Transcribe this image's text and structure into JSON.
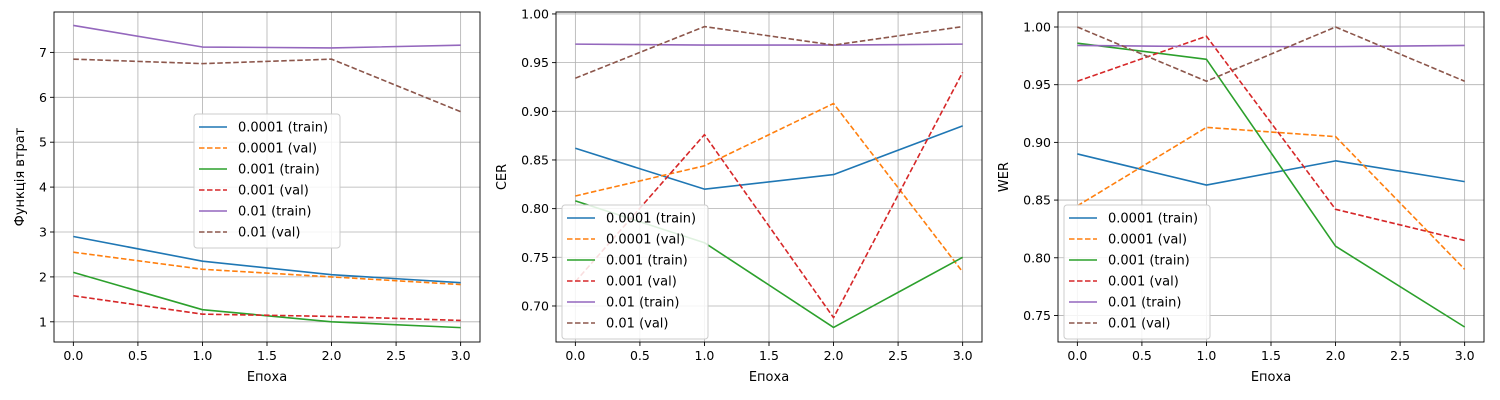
{
  "series_styles": [
    {
      "color": "#1f77b4",
      "dash": "solid"
    },
    {
      "color": "#ff7f0e",
      "dash": "dashed"
    },
    {
      "color": "#2ca02c",
      "dash": "solid"
    },
    {
      "color": "#d62728",
      "dash": "dashed"
    },
    {
      "color": "#9467bd",
      "dash": "solid"
    },
    {
      "color": "#8c564b",
      "dash": "dashed"
    }
  ],
  "chart_data": [
    {
      "type": "line",
      "xlabel": "Епоха",
      "ylabel": "Функція втрат",
      "x": [
        0,
        1,
        2,
        3
      ],
      "xlim": [
        -0.15,
        3.15
      ],
      "ylim": [
        0.55,
        7.9
      ],
      "xticks": [
        0.0,
        0.5,
        1.0,
        1.5,
        2.0,
        2.5,
        3.0
      ],
      "xtick_labels": [
        "0.0",
        "0.5",
        "1.0",
        "1.5",
        "2.0",
        "2.5",
        "3.0"
      ],
      "yticks": [
        1,
        2,
        3,
        4,
        5,
        6,
        7
      ],
      "ytick_labels": [
        "1",
        "2",
        "3",
        "4",
        "5",
        "6",
        "7"
      ],
      "grid": true,
      "legend_position": "center",
      "series": [
        {
          "name": "0.0001 (train)",
          "values": [
            2.9,
            2.35,
            2.05,
            1.87
          ]
        },
        {
          "name": "0.0001 (val)",
          "values": [
            2.55,
            2.17,
            2.0,
            1.83
          ]
        },
        {
          "name": "0.001 (train)",
          "values": [
            2.1,
            1.27,
            1.0,
            0.87
          ]
        },
        {
          "name": "0.001 (val)",
          "values": [
            1.58,
            1.17,
            1.12,
            1.03
          ]
        },
        {
          "name": "0.01 (train)",
          "values": [
            7.6,
            7.12,
            7.1,
            7.16
          ]
        },
        {
          "name": "0.01 (val)",
          "values": [
            6.85,
            6.75,
            6.85,
            5.68
          ]
        }
      ]
    },
    {
      "type": "line",
      "xlabel": "Епоха",
      "ylabel": "CER",
      "x": [
        0,
        1,
        2,
        3
      ],
      "xlim": [
        -0.15,
        3.15
      ],
      "ylim": [
        0.663,
        1.002
      ],
      "xticks": [
        0.0,
        0.5,
        1.0,
        1.5,
        2.0,
        2.5,
        3.0
      ],
      "xtick_labels": [
        "0.0",
        "0.5",
        "1.0",
        "1.5",
        "2.0",
        "2.5",
        "3.0"
      ],
      "yticks": [
        0.7,
        0.75,
        0.8,
        0.85,
        0.9,
        0.95,
        1.0
      ],
      "ytick_labels": [
        "0.70",
        "0.75",
        "0.80",
        "0.85",
        "0.90",
        "0.95",
        "1.00"
      ],
      "grid": true,
      "legend_position": "lower left",
      "series": [
        {
          "name": "0.0001 (train)",
          "values": [
            0.862,
            0.82,
            0.835,
            0.885
          ]
        },
        {
          "name": "0.0001 (val)",
          "values": [
            0.813,
            0.844,
            0.908,
            0.735
          ]
        },
        {
          "name": "0.001 (train)",
          "values": [
            0.808,
            0.765,
            0.678,
            0.75
          ]
        },
        {
          "name": "0.001 (val)",
          "values": [
            0.725,
            0.876,
            0.688,
            0.94
          ]
        },
        {
          "name": "0.01 (train)",
          "values": [
            0.969,
            0.968,
            0.968,
            0.969
          ]
        },
        {
          "name": "0.01 (val)",
          "values": [
            0.934,
            0.987,
            0.968,
            0.987
          ]
        }
      ]
    },
    {
      "type": "line",
      "xlabel": "Епоха",
      "ylabel": "WER",
      "x": [
        0,
        1,
        2,
        3
      ],
      "xlim": [
        -0.15,
        3.15
      ],
      "ylim": [
        0.727,
        1.013
      ],
      "xticks": [
        0.0,
        0.5,
        1.0,
        1.5,
        2.0,
        2.5,
        3.0
      ],
      "xtick_labels": [
        "0.0",
        "0.5",
        "1.0",
        "1.5",
        "2.0",
        "2.5",
        "3.0"
      ],
      "yticks": [
        0.75,
        0.8,
        0.85,
        0.9,
        0.95,
        1.0
      ],
      "ytick_labels": [
        "0.75",
        "0.80",
        "0.85",
        "0.90",
        "0.95",
        "1.00"
      ],
      "grid": true,
      "legend_position": "lower left",
      "series": [
        {
          "name": "0.0001 (train)",
          "values": [
            0.89,
            0.863,
            0.884,
            0.866
          ]
        },
        {
          "name": "0.0001 (val)",
          "values": [
            0.845,
            0.913,
            0.905,
            0.79
          ]
        },
        {
          "name": "0.001 (train)",
          "values": [
            0.986,
            0.972,
            0.81,
            0.74
          ]
        },
        {
          "name": "0.001 (val)",
          "values": [
            0.953,
            0.992,
            0.842,
            0.815
          ]
        },
        {
          "name": "0.01 (train)",
          "values": [
            0.984,
            0.983,
            0.983,
            0.984
          ]
        },
        {
          "name": "0.01 (val)",
          "values": [
            1.0,
            0.953,
            1.0,
            0.953
          ]
        }
      ]
    }
  ]
}
